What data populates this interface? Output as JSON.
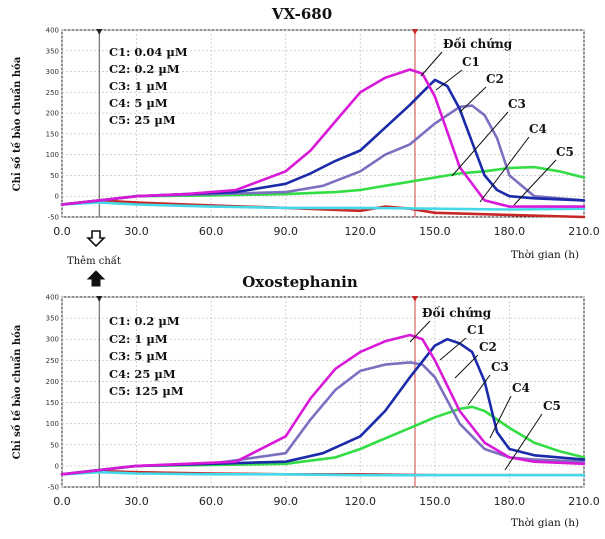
{
  "figure": {
    "between_label": "Thêm chất"
  },
  "chart_data": [
    {
      "type": "line",
      "title": "VX-680",
      "xlabel": "Thời gian (h)",
      "ylabel": "Chỉ số tế bào chuẩn hóa",
      "xlim": [
        0,
        210
      ],
      "ylim": [
        -50,
        400
      ],
      "xticks": [
        "0.0",
        "30.0",
        "60.0",
        "90.0",
        "120.0",
        "150.0",
        "180.0",
        "210.0"
      ],
      "yticks": [
        "400",
        "350",
        "300",
        "250",
        "200",
        "150",
        "100",
        "50",
        "0",
        "-50"
      ],
      "legend": [
        "C1: 0.04 µM",
        "C2: 0.2 µM",
        "C3: 1 µM",
        "C4: 5 µM",
        "C5: 25 µM"
      ],
      "annotations": [
        "Đối chứng",
        "C1",
        "C2",
        "C3",
        "C4",
        "C5"
      ],
      "compound_added_at": 15,
      "series": [
        {
          "name": "Đối chứng",
          "color": "#d81ad8",
          "x": [
            0,
            15,
            30,
            50,
            70,
            90,
            100,
            110,
            120,
            130,
            140,
            145,
            150,
            160,
            170,
            180,
            190,
            200,
            210
          ],
          "y": [
            -20,
            -10,
            0,
            5,
            15,
            60,
            110,
            180,
            250,
            285,
            305,
            295,
            240,
            70,
            -10,
            -25,
            -25,
            -25,
            -25
          ]
        },
        {
          "name": "C1",
          "color": "#1a2aa8",
          "x": [
            0,
            15,
            30,
            50,
            70,
            90,
            100,
            110,
            120,
            130,
            140,
            145,
            150,
            155,
            160,
            165,
            170,
            175,
            180,
            190,
            210
          ],
          "y": [
            -20,
            -10,
            0,
            5,
            10,
            30,
            55,
            85,
            110,
            165,
            220,
            250,
            280,
            265,
            210,
            130,
            50,
            15,
            0,
            -5,
            -10
          ]
        },
        {
          "name": "C2",
          "color": "#7b6fbf",
          "x": [
            0,
            15,
            30,
            60,
            90,
            105,
            120,
            130,
            140,
            150,
            160,
            165,
            170,
            175,
            180,
            190,
            210
          ],
          "y": [
            -20,
            -10,
            0,
            5,
            10,
            25,
            60,
            100,
            125,
            175,
            215,
            218,
            195,
            140,
            50,
            0,
            -10
          ]
        },
        {
          "name": "C3",
          "color": "#33dd44",
          "x": [
            0,
            15,
            30,
            60,
            90,
            110,
            120,
            130,
            140,
            150,
            160,
            170,
            180,
            190,
            200,
            210
          ],
          "y": [
            -20,
            -10,
            0,
            2,
            5,
            10,
            15,
            25,
            35,
            45,
            55,
            60,
            68,
            70,
            60,
            45
          ]
        },
        {
          "name": "C4",
          "color": "#44d8e8",
          "x": [
            0,
            15,
            30,
            60,
            90,
            120,
            150,
            180,
            210
          ],
          "y": [
            -20,
            -15,
            -20,
            -25,
            -28,
            -28,
            -30,
            -32,
            -30
          ]
        },
        {
          "name": "C5",
          "color": "#c62828",
          "x": [
            0,
            15,
            30,
            60,
            90,
            120,
            130,
            140,
            150,
            180,
            210
          ],
          "y": [
            -20,
            -10,
            -15,
            -22,
            -28,
            -35,
            -25,
            -30,
            -40,
            -45,
            -50
          ]
        }
      ]
    },
    {
      "type": "line",
      "title": "Oxostephanin",
      "xlabel": "Thời gian (h)",
      "ylabel": "Chỉ số tế bào chuẩn hóa",
      "xlim": [
        0,
        210
      ],
      "ylim": [
        -50,
        400
      ],
      "xticks": [
        "0.0",
        "30.0",
        "60.0",
        "90.0",
        "120.0",
        "150.0",
        "180.0",
        "210.0"
      ],
      "yticks": [
        "400",
        "350",
        "300",
        "250",
        "200",
        "150",
        "100",
        "50",
        "0",
        "-50"
      ],
      "legend": [
        "C1: 0.2 µM",
        "C2: 1 µM",
        "C3: 5 µM",
        "C4: 25 µM",
        "C5: 125 µM"
      ],
      "annotations": [
        "Đối chứng",
        "C1",
        "C2",
        "C3",
        "C4",
        "C5"
      ],
      "compound_added_at": 15,
      "series": [
        {
          "name": "Đối chứng",
          "color": "#d81ad8",
          "x": [
            0,
            15,
            30,
            50,
            70,
            90,
            100,
            110,
            120,
            130,
            140,
            145,
            150,
            160,
            170,
            180,
            190,
            210
          ],
          "y": [
            -20,
            -10,
            0,
            5,
            10,
            70,
            160,
            230,
            270,
            295,
            310,
            300,
            250,
            130,
            55,
            20,
            10,
            5
          ]
        },
        {
          "name": "C1",
          "color": "#1a2aa8",
          "x": [
            0,
            15,
            30,
            60,
            90,
            105,
            120,
            130,
            140,
            150,
            155,
            160,
            165,
            170,
            175,
            180,
            190,
            210
          ],
          "y": [
            -20,
            -10,
            0,
            5,
            10,
            30,
            70,
            130,
            210,
            285,
            300,
            290,
            270,
            200,
            80,
            40,
            25,
            15
          ]
        },
        {
          "name": "C2",
          "color": "#7b6fbf",
          "x": [
            0,
            15,
            30,
            60,
            90,
            100,
            110,
            120,
            130,
            140,
            145,
            150,
            160,
            170,
            180,
            190,
            210
          ],
          "y": [
            -20,
            -10,
            0,
            5,
            30,
            110,
            180,
            225,
            240,
            245,
            240,
            210,
            100,
            40,
            20,
            15,
            10
          ]
        },
        {
          "name": "C3",
          "color": "#33dd44",
          "x": [
            0,
            15,
            30,
            60,
            90,
            110,
            120,
            130,
            140,
            150,
            160,
            165,
            170,
            180,
            190,
            200,
            210
          ],
          "y": [
            -20,
            -10,
            0,
            2,
            5,
            20,
            40,
            65,
            90,
            115,
            135,
            140,
            130,
            90,
            55,
            35,
            20
          ]
        },
        {
          "name": "C4",
          "color": "#44d8e8",
          "x": [
            0,
            15,
            30,
            60,
            90,
            120,
            150,
            180,
            210
          ],
          "y": [
            -20,
            -15,
            -18,
            -20,
            -20,
            -22,
            -22,
            -22,
            -22
          ]
        },
        {
          "name": "C5",
          "color": "#c62828",
          "x": [
            0,
            15,
            30,
            60,
            90,
            120,
            150,
            180,
            210
          ],
          "y": [
            -20,
            -12,
            -15,
            -18,
            -20,
            -20,
            -22,
            -22,
            -22
          ]
        }
      ]
    }
  ]
}
